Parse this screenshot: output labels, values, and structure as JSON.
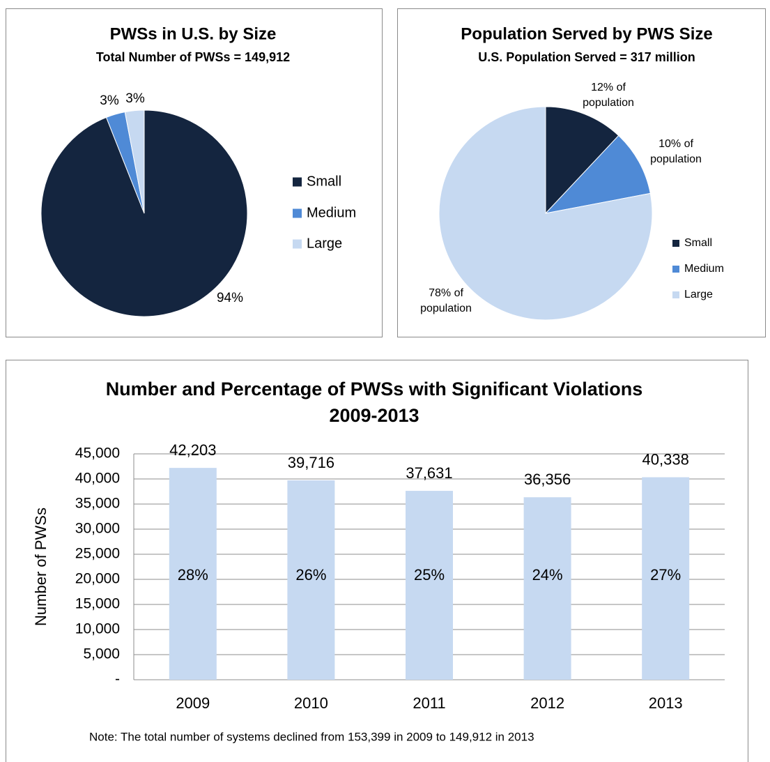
{
  "chart_data": [
    {
      "type": "pie",
      "title": "PWSs in U.S. by Size",
      "subtitle": "Total Number of PWSs = 149,912",
      "categories": [
        "Small",
        "Medium",
        "Large"
      ],
      "values": [
        94,
        3,
        3
      ],
      "value_labels": [
        "94%",
        "3%",
        "3%"
      ],
      "colors": [
        "#14253f",
        "#4f8ad6",
        "#c6d9f1"
      ]
    },
    {
      "type": "pie",
      "title": "Population Served by PWS Size",
      "subtitle": "U.S. Population Served = 317 million",
      "categories": [
        "Small",
        "Medium",
        "Large"
      ],
      "values": [
        12,
        10,
        78
      ],
      "value_labels": [
        "12% of population",
        "10% of population",
        "78% of population"
      ],
      "colors": [
        "#14253f",
        "#4f8ad6",
        "#c6d9f1"
      ]
    },
    {
      "type": "bar",
      "title": "Number and Percentage of PWSs with Significant Violations",
      "subtitle": "2009-2013",
      "categories": [
        "2009",
        "2010",
        "2011",
        "2012",
        "2013"
      ],
      "values": [
        42203,
        39716,
        37631,
        36356,
        40338
      ],
      "value_labels": [
        "42,203",
        "39,716",
        "37,631",
        "36,356",
        "40,338"
      ],
      "inner_labels": [
        "28%",
        "26%",
        "25%",
        "24%",
        "27%"
      ],
      "ylabel": "Number of PWSs",
      "color": "#c6d9f1",
      "grid": true,
      "ylim": [
        0,
        45000
      ],
      "yticks": [
        {
          "value": 0,
          "label": "-"
        },
        {
          "value": 5000,
          "label": "5,000"
        },
        {
          "value": 10000,
          "label": "10,000"
        },
        {
          "value": 15000,
          "label": "15,000"
        },
        {
          "value": 20000,
          "label": "20,000"
        },
        {
          "value": 25000,
          "label": "25,000"
        },
        {
          "value": 30000,
          "label": "30,000"
        },
        {
          "value": 35000,
          "label": "35,000"
        },
        {
          "value": 40000,
          "label": "40,000"
        },
        {
          "value": 45000,
          "label": "45,000"
        }
      ],
      "note": "Note: The total number of systems declined from 153,399 in 2009 to 149,912 in 2013"
    }
  ]
}
